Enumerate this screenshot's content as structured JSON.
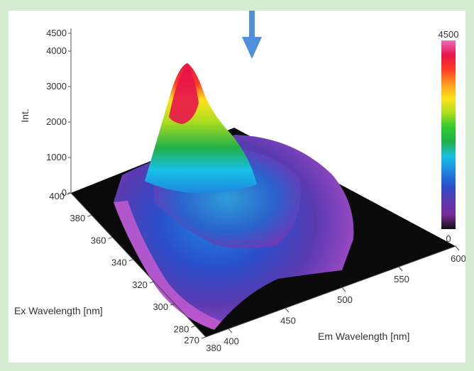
{
  "chart_data": {
    "type": "surface3d",
    "title": "",
    "zlabel": "Int.",
    "xlabel": "Em Wavelength [nm]",
    "ylabel": "Ex Wavelength [nm]",
    "z_ticks": [
      "0",
      "1000",
      "2000",
      "3000",
      "4000",
      "4500"
    ],
    "x_ticks": [
      "400",
      "450",
      "500",
      "550",
      "600"
    ],
    "y_ticks": [
      "270",
      "280",
      "300",
      "320",
      "340",
      "360",
      "380",
      "400"
    ],
    "x_start_label": "380",
    "zlim": [
      0,
      4500
    ],
    "xlim": [
      380,
      600
    ],
    "ylim": [
      270,
      400
    ],
    "peak": {
      "em": 420,
      "ex": 350,
      "intensity": 3500
    },
    "colorbar": {
      "max_label": "4500",
      "min_label": "0",
      "colors": [
        "#111111",
        "#7a2a9a",
        "#5a3ab0",
        "#2a4fcc",
        "#1e86e0",
        "#18c0e8",
        "#20b04a",
        "#2ec82e",
        "#aade1e",
        "#ffe21a",
        "#ff9a1e",
        "#ff3a22",
        "#e8144a",
        "#ee6ac0"
      ]
    },
    "annotation": {
      "type": "arrow",
      "direction": "down",
      "color": "#4f8fdc"
    }
  }
}
